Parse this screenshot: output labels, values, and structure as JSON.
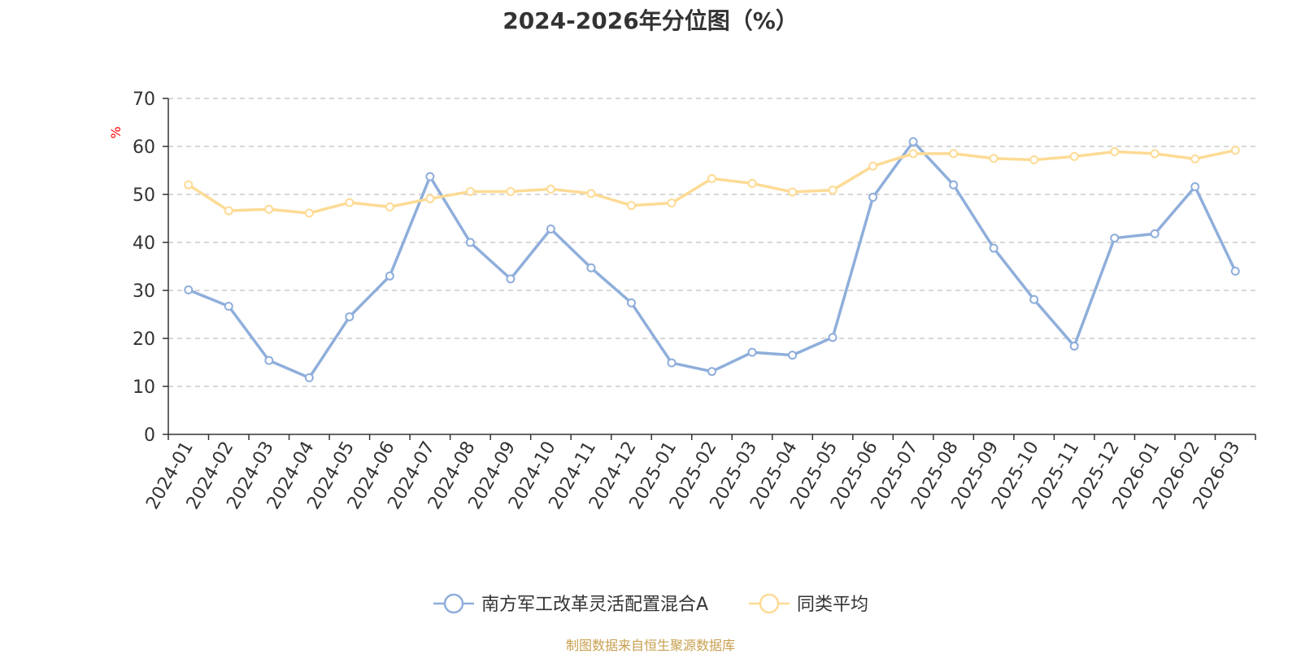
{
  "title": "2024-2026年分位图（%）",
  "source_note": "制图数据来自恒生聚源数据库",
  "chart_data": {
    "type": "line",
    "title": "2024-2026年分位图（%）",
    "xlabel": "",
    "ylabel": "%",
    "ylim": [
      0,
      70
    ],
    "yticks": [
      0,
      10,
      20,
      30,
      40,
      50,
      60,
      70
    ],
    "grid": true,
    "legend_position": "bottom-center",
    "categories": [
      "2024-01",
      "2024-02",
      "2024-03",
      "2024-04",
      "2024-05",
      "2024-06",
      "2024-07",
      "2024-08",
      "2024-09",
      "2024-10",
      "2024-11",
      "2024-12",
      "2025-01",
      "2025-02",
      "2025-03",
      "2025-04",
      "2025-05",
      "2025-06",
      "2025-07",
      "2025-08",
      "2025-09",
      "2025-10",
      "2025-11",
      "2025-12",
      "2026-01",
      "2026-02",
      "2026-03"
    ],
    "series": [
      {
        "name": "南方军工改革灵活配置混合A",
        "color": "#8faedb",
        "values": [
          30.1,
          26.7,
          15.4,
          11.8,
          24.5,
          33.0,
          53.7,
          40.0,
          32.4,
          42.8,
          34.7,
          27.4,
          14.9,
          13.1,
          17.1,
          16.5,
          20.2,
          49.4,
          61.0,
          52.0,
          38.8,
          28.1,
          18.4,
          40.9,
          41.8,
          51.6,
          34.0
        ]
      },
      {
        "name": "同类平均",
        "color": "#fddb95",
        "values": [
          52.0,
          46.6,
          46.9,
          46.1,
          48.3,
          47.4,
          49.1,
          50.6,
          50.6,
          51.1,
          50.2,
          47.7,
          48.2,
          53.3,
          52.3,
          50.5,
          50.9,
          55.9,
          58.5,
          58.5,
          57.5,
          57.2,
          57.9,
          58.9,
          58.5,
          57.4,
          59.2
        ]
      }
    ]
  }
}
